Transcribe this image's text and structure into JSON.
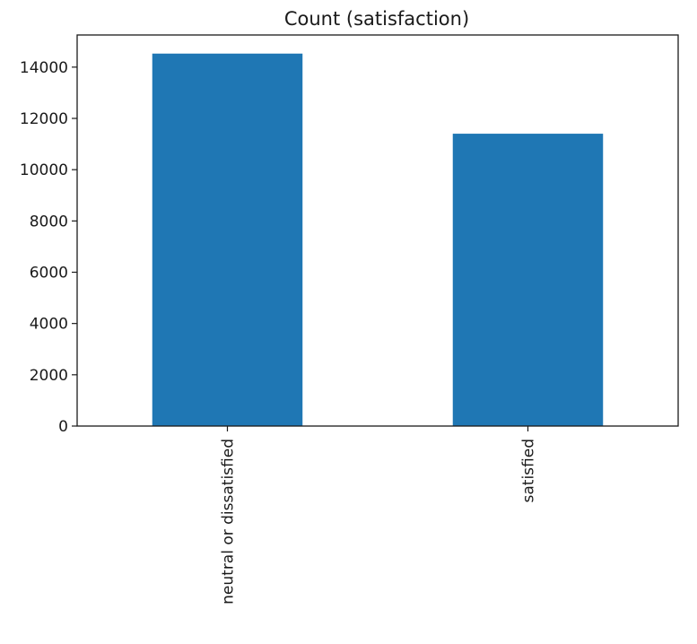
{
  "chart_data": {
    "type": "bar",
    "title": "Count (satisfaction)",
    "xlabel": "",
    "ylabel": "",
    "categories": [
      "neutral or dissatisfied",
      "satisfied"
    ],
    "values": [
      14528,
      11403
    ],
    "ylim": [
      0,
      15254
    ],
    "yticks": [
      0,
      2000,
      4000,
      6000,
      8000,
      10000,
      12000,
      14000
    ],
    "bar_color": "#1f77b4",
    "grid": false,
    "legend": "none"
  }
}
